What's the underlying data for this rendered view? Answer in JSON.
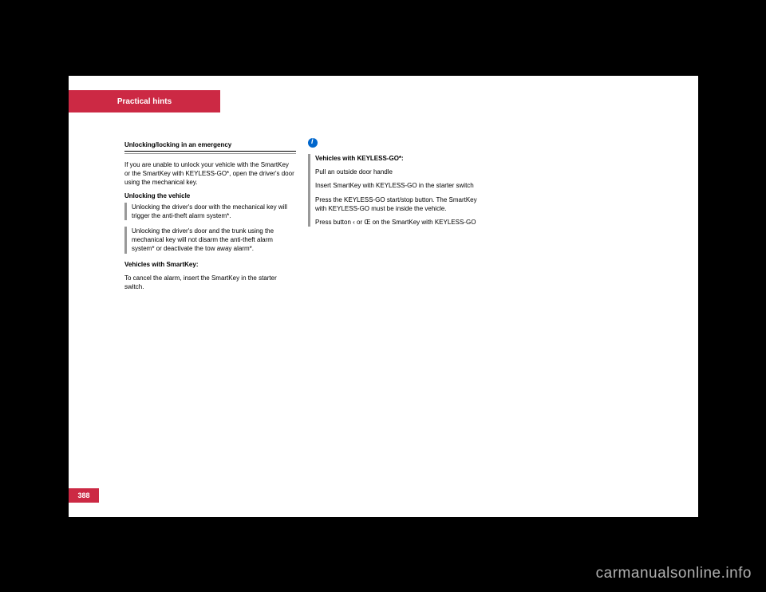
{
  "header": {
    "title": "Practical hints"
  },
  "left_column": {
    "section_title": "Unlocking/locking in an emergency",
    "intro_text": "If you are unable to unlock your vehicle with the SmartKey or the SmartKey with KEYLESS-GO*, open the driver's door using the mechanical key.",
    "subsection_title": "Unlocking the vehicle",
    "note1_label": "!",
    "note1_text": "Unlocking the driver's door with the mechanical key will trigger the anti-theft alarm system*.",
    "note2_label": "!",
    "note2_text": "Unlocking the driver's door and the trunk using the mechanical key will not disarm the anti-theft alarm system* or deactivate the tow away alarm*.",
    "body_title": "Vehicles with SmartKey:",
    "body_text": "To cancel the alarm, insert the SmartKey in the starter switch."
  },
  "right_column": {
    "info_label": "Vehicles with KEYLESS-GO*:",
    "info_list": [
      "Pull an outside door handle",
      "Insert SmartKey with KEYLESS-GO in the starter switch",
      "Press the KEYLESS-GO start/stop button. The SmartKey with KEYLESS-GO must be inside the vehicle.",
      "Press button ‹ or Œ on the SmartKey with KEYLESS-GO"
    ]
  },
  "page_number": "388",
  "watermark": "carmanualsonline.info",
  "colors": {
    "background": "#000000",
    "page_bg": "#ffffff",
    "brand_red": "#cc2944",
    "info_blue": "#0066cc",
    "note_border": "#999999",
    "watermark_color": "#b0b0b0"
  }
}
